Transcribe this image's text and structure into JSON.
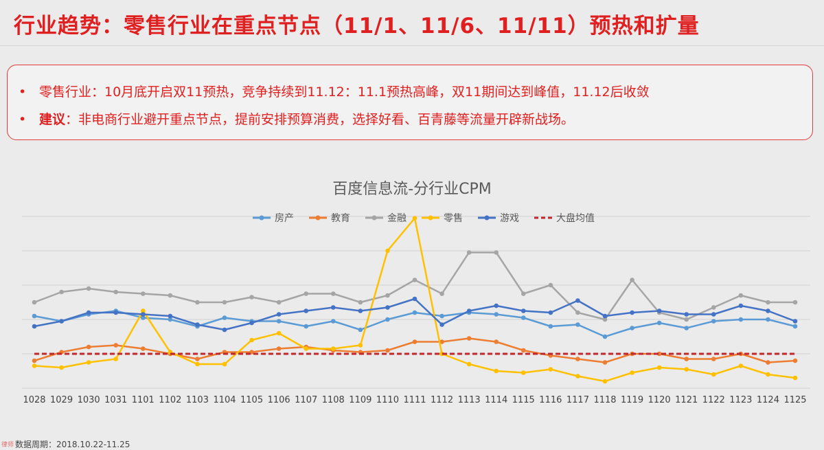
{
  "title": "行业趋势：零售行业在重点节点（11/1、11/6、11/11）预热和扩量",
  "bullets": [
    {
      "marker": "•",
      "strong": "",
      "text": "零售行业：10月底开启双11预热，竞争持续到11.12：11.1预热高峰，双11期间达到峰值，11.12后收敛"
    },
    {
      "marker": "•",
      "strong": "建议",
      "text": "：非电商行业避开重点节点，提前安排预算消费，选择好看、百青藤等流量开辟新战场。"
    }
  ],
  "footer": "数据周期：2018.10.22-11.25",
  "watermark": "律师",
  "chart_data": {
    "type": "line",
    "title": "百度信息流-分行业CPM",
    "legend_position": "top",
    "grid": true,
    "ylim": [
      0,
      100
    ],
    "categories": [
      "1028",
      "1029",
      "1030",
      "1031",
      "1101",
      "1102",
      "1103",
      "1104",
      "1105",
      "1106",
      "1107",
      "1108",
      "1109",
      "1110",
      "1111",
      "1112",
      "1113",
      "1114",
      "1115",
      "1116",
      "1117",
      "1118",
      "1119",
      "1120",
      "1121",
      "1122",
      "1123",
      "1124",
      "1125"
    ],
    "series": [
      {
        "name": "房产",
        "color": "#5b9bd5",
        "dashed": false,
        "values": [
          42,
          39,
          43,
          45,
          41,
          40,
          36,
          41,
          39,
          39,
          36,
          39,
          34,
          40,
          44,
          42,
          44,
          43,
          41,
          36,
          37,
          30,
          35,
          38,
          35,
          39,
          40,
          40,
          36
        ]
      },
      {
        "name": "教育",
        "color": "#ed7d31",
        "dashed": false,
        "values": [
          16,
          21,
          24,
          25,
          23,
          20,
          17,
          21,
          21,
          23,
          24,
          22,
          21,
          22,
          27,
          27,
          29,
          27,
          22,
          19,
          17,
          15,
          20,
          20,
          17,
          17,
          20,
          15,
          16
        ]
      },
      {
        "name": "金融",
        "color": "#a5a5a5",
        "dashed": false,
        "values": [
          50,
          56,
          58,
          56,
          55,
          54,
          50,
          50,
          53,
          50,
          55,
          55,
          50,
          54,
          63,
          55,
          79,
          79,
          55,
          60,
          44,
          40,
          63,
          44,
          40,
          47,
          54,
          50,
          50
        ]
      },
      {
        "name": "零售",
        "color": "#ffc000",
        "dashed": false,
        "values": [
          13,
          12,
          15,
          17,
          45,
          21,
          14,
          14,
          28,
          32,
          23,
          23,
          25,
          80,
          99,
          20,
          14,
          10,
          9,
          11,
          7,
          4,
          9,
          12,
          11,
          8,
          13,
          8,
          6
        ]
      },
      {
        "name": "游戏",
        "color": "#4472c4",
        "dashed": false,
        "values": [
          36,
          39,
          44,
          44,
          43,
          42,
          37,
          34,
          38,
          43,
          45,
          47,
          45,
          47,
          52,
          37,
          45,
          48,
          45,
          44,
          51,
          42,
          44,
          45,
          43,
          43,
          48,
          45,
          39
        ]
      },
      {
        "name": "大盘均值",
        "color": "#c0282d",
        "dashed": true,
        "values": [
          20,
          20,
          20,
          20,
          20,
          20,
          20,
          20,
          20,
          20,
          20,
          20,
          20,
          20,
          20,
          20,
          20,
          20,
          20,
          20,
          20,
          20,
          20,
          20,
          20,
          20,
          20,
          20,
          20
        ]
      }
    ]
  }
}
